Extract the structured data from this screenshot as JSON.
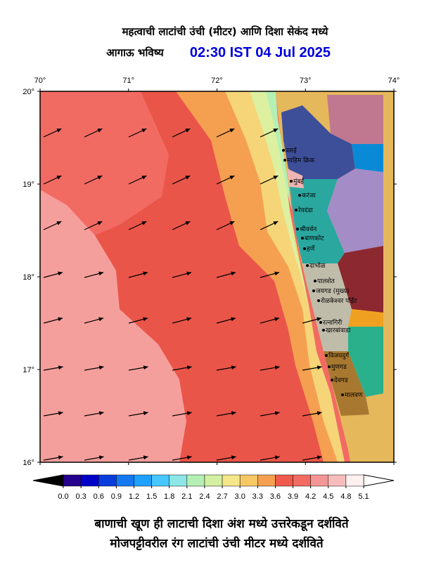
{
  "header": {
    "title": "महत्वाची लाटांची उंची (मीटर) आणि दिशा सेकंद मध्ये",
    "subtitle": "आगाऊ भविष्य",
    "time": "02:30 IST 04 Jul 2025"
  },
  "map": {
    "lon_ticks": [
      {
        "value": 70,
        "label": "70°"
      },
      {
        "value": 71,
        "label": "71°"
      },
      {
        "value": 72,
        "label": "72°"
      },
      {
        "value": 73,
        "label": "73°"
      },
      {
        "value": 74,
        "label": "74°"
      }
    ],
    "lat_ticks": [
      {
        "value": 20,
        "label": "20°"
      },
      {
        "value": 19,
        "label": "19°"
      },
      {
        "value": 18,
        "label": "18°"
      },
      {
        "value": 17,
        "label": "17°"
      },
      {
        "value": 16,
        "label": "16°"
      }
    ],
    "places": [
      "वसई",
      "माहिम क्रिक",
      "मुंबई",
      "करंजा",
      "रेवदंडा",
      "श्रीवर्धन",
      "बाणकोट",
      "हर्णे",
      "दाभोळ",
      "पालशेत",
      "जयगड (मुख्य)",
      "रोळकेश्वर पॉईंट",
      "रत्नागिरी",
      "खारबांवाडा",
      "विजयदुर्ग",
      "मुणगड",
      "देवगड",
      "मालवण"
    ]
  },
  "colorbar": {
    "ticks": [
      {
        "value": 0,
        "label": "0.0"
      },
      0.3,
      0.6,
      0.9,
      1.2,
      1.5,
      1.8,
      2.1,
      2.4,
      2.7,
      {
        "value": 3,
        "label": "3.0"
      },
      3.3,
      3.6,
      3.9,
      4.2,
      4.5,
      4.8,
      5.1
    ],
    "colors": [
      "#24008c",
      "#0000c8",
      "#0a3cdc",
      "#1478f0",
      "#1ea0ff",
      "#46c8ff",
      "#8ce6e6",
      "#b4f0b4",
      "#d2f0a0",
      "#f5e68c",
      "#f5c864",
      "#f5a050",
      "#ef5a4c",
      "#f26b63",
      "#f59696",
      "#f8bcbc",
      "#fff0f0"
    ],
    "under_color": "#000000",
    "over_color": "#ffffff"
  },
  "footer": [
    "बाणाची खूण ही लाटाची दिशा अंश मध्ये उत्तरेकडून दर्शविते",
    "मोजपट्टीवरील रंग लाटांची उंची मीटर मध्ये दर्शविते"
  ]
}
